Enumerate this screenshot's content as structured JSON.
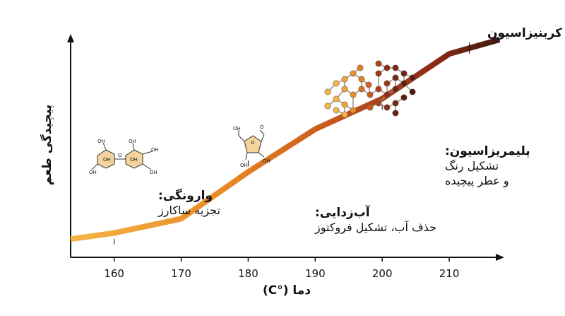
{
  "chart_data": {
    "type": "line",
    "xlabel": "دما (°C)",
    "ylabel": "پیچیدگی طعم",
    "xlim": [
      153.5,
      218
    ],
    "ylim": [
      0,
      100
    ],
    "x_ticks": [
      160,
      170,
      180,
      190,
      200,
      210
    ],
    "x_tick_labels": [
      "160",
      "170",
      "180",
      "190",
      "200",
      "210"
    ],
    "y_ticks": [],
    "grid": false,
    "legend": "none",
    "series": [
      {
        "x": [
          153.5,
          160,
          170,
          180,
          190,
          200,
          210,
          217.5
        ],
        "y": [
          2,
          5,
          12,
          35,
          56,
          71,
          93,
          100
        ],
        "colors": [
          "#f5b547",
          "#e88b25",
          "#c9571d",
          "#8a2a16",
          "#3a1a10"
        ]
      }
    ],
    "annotations": [
      {
        "id": "caramelization",
        "x": 160,
        "title": "وارونگی:",
        "lines": [
          "تجزیه ساکارز"
        ]
      },
      {
        "id": "dehydration",
        "x": 180,
        "title": "آب‌زدایی:",
        "lines": [
          "حذف آب، تشکیل فروکتوز"
        ]
      },
      {
        "id": "polymerization",
        "x": 200,
        "title": "پلیمریزاسیون:",
        "lines": [
          "تشکیل رنگ",
          "و عطر پیچیده"
        ]
      },
      {
        "id": "carbonization",
        "x": 213,
        "title": "کربنیزاسیون",
        "lines": []
      }
    ],
    "molecule_labels": {
      "oh": "OH",
      "o": "O"
    }
  }
}
